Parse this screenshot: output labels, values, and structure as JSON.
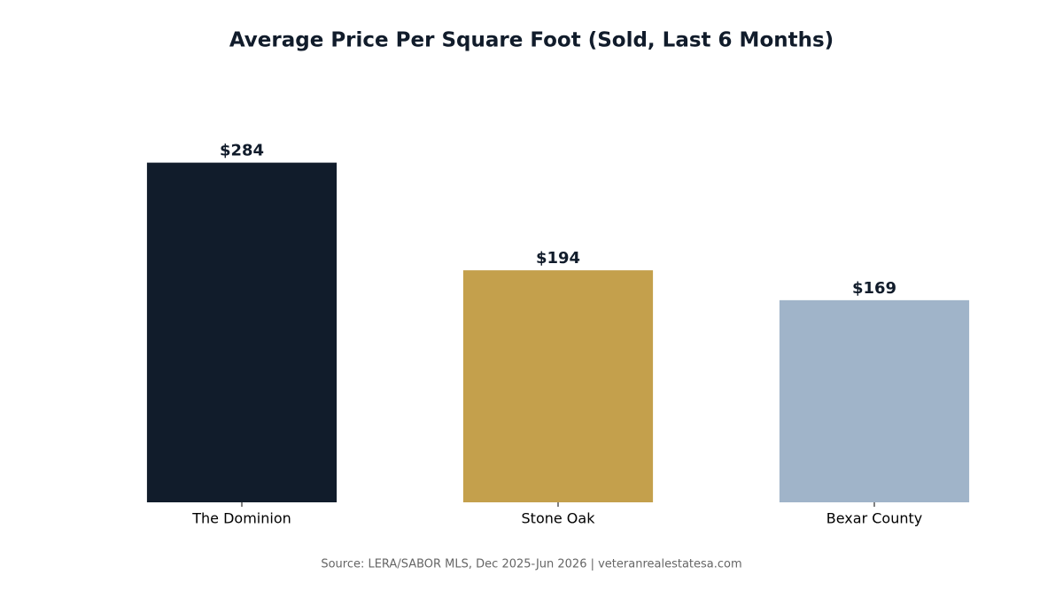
{
  "chart_data": {
    "type": "bar",
    "title": "Average Price Per Square Foot (Sold, Last 6 Months)",
    "categories": [
      "The Dominion",
      "Stone Oak",
      "Bexar County"
    ],
    "values": [
      284,
      194,
      169
    ],
    "value_labels": [
      "$284",
      "$194",
      "$169"
    ],
    "colors": [
      "#111c2b",
      "#c4a04c",
      "#a0b4c9"
    ],
    "ylim": [
      0,
      300
    ],
    "source": "Source: LERA/SABOR MLS, Dec 2025-Jun 2026  |  veteranrealestatesa.com"
  }
}
